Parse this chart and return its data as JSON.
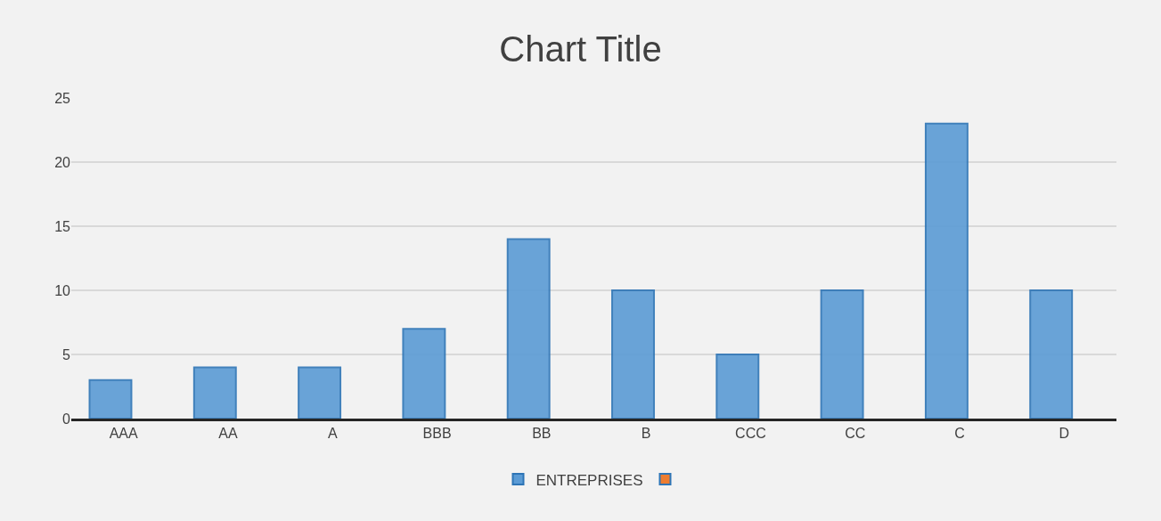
{
  "chart_data": {
    "type": "bar",
    "title": "Chart Title",
    "categories": [
      "AAA",
      "AA",
      "A",
      "BBB",
      "BB",
      "B",
      "CCC",
      "CC",
      "C",
      "D"
    ],
    "series": [
      {
        "name": "ENTREPRISES",
        "color": "#5b9bd5",
        "values": [
          3,
          4,
          4,
          7,
          14,
          10,
          5,
          10,
          23,
          10
        ]
      },
      {
        "color": "#ed7d31",
        "values": [
          null,
          null,
          null,
          null,
          null,
          null,
          null,
          null,
          null,
          null
        ]
      }
    ],
    "ylim": [
      0,
      25
    ],
    "yticks": [
      0,
      5,
      10,
      15,
      20,
      25
    ],
    "grid": "y",
    "legend": "bottom"
  }
}
